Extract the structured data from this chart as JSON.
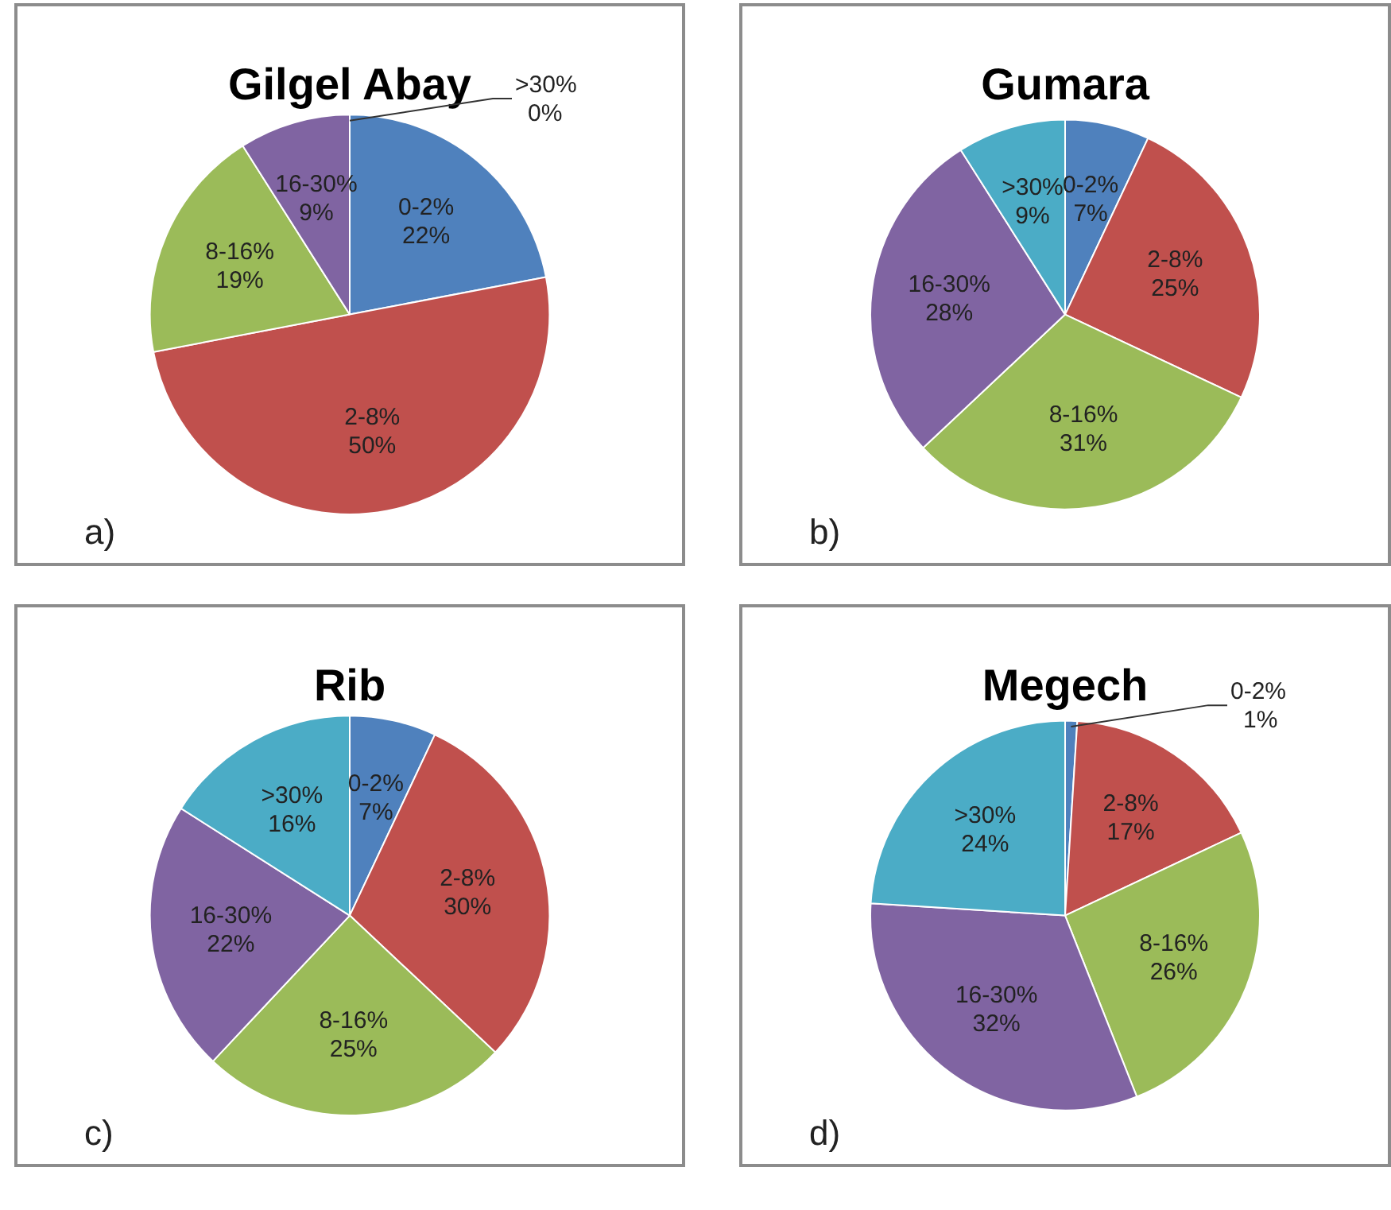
{
  "chart_data": [
    {
      "type": "pie",
      "title": "Gilgel Abay",
      "categories": [
        "0-2%",
        "2-8%",
        "8-16%",
        "16-30%",
        ">30%"
      ],
      "values": [
        22,
        50,
        19,
        9,
        0
      ],
      "value_labels": [
        "22%",
        "50%",
        "19%",
        "9%",
        "0%"
      ],
      "colors": [
        "#4f81bd",
        "#c0504d",
        "#9bbb59",
        "#8064a2",
        "#4bacc6"
      ],
      "legend": false,
      "annotations": [
        "a)"
      ]
    },
    {
      "type": "pie",
      "title": "Gumara",
      "categories": [
        "0-2%",
        "2-8%",
        "8-16%",
        "16-30%",
        ">30%"
      ],
      "values": [
        7,
        25,
        31,
        28,
        9
      ],
      "value_labels": [
        "7%",
        "25%",
        "31%",
        "28%",
        "9%"
      ],
      "colors": [
        "#4f81bd",
        "#c0504d",
        "#9bbb59",
        "#8064a2",
        "#4bacc6"
      ],
      "legend": false,
      "annotations": [
        "b)"
      ]
    },
    {
      "type": "pie",
      "title": "Rib",
      "categories": [
        "0-2%",
        "2-8%",
        "8-16%",
        "16-30%",
        ">30%"
      ],
      "values": [
        7,
        30,
        25,
        22,
        16
      ],
      "value_labels": [
        "7%",
        "30%",
        "25%",
        "22%",
        "16%"
      ],
      "colors": [
        "#4f81bd",
        "#c0504d",
        "#9bbb59",
        "#8064a2",
        "#4bacc6"
      ],
      "legend": false,
      "annotations": [
        "c)"
      ]
    },
    {
      "type": "pie",
      "title": "Megech",
      "categories": [
        "0-2%",
        "2-8%",
        "8-16%",
        "16-30%",
        ">30%"
      ],
      "values": [
        1,
        17,
        26,
        32,
        24
      ],
      "value_labels": [
        "1%",
        "17%",
        "26%",
        "32%",
        "24%"
      ],
      "colors": [
        "#4f81bd",
        "#c0504d",
        "#9bbb59",
        "#8064a2",
        "#4bacc6"
      ],
      "legend": false,
      "annotations": [
        "d)"
      ]
    }
  ]
}
